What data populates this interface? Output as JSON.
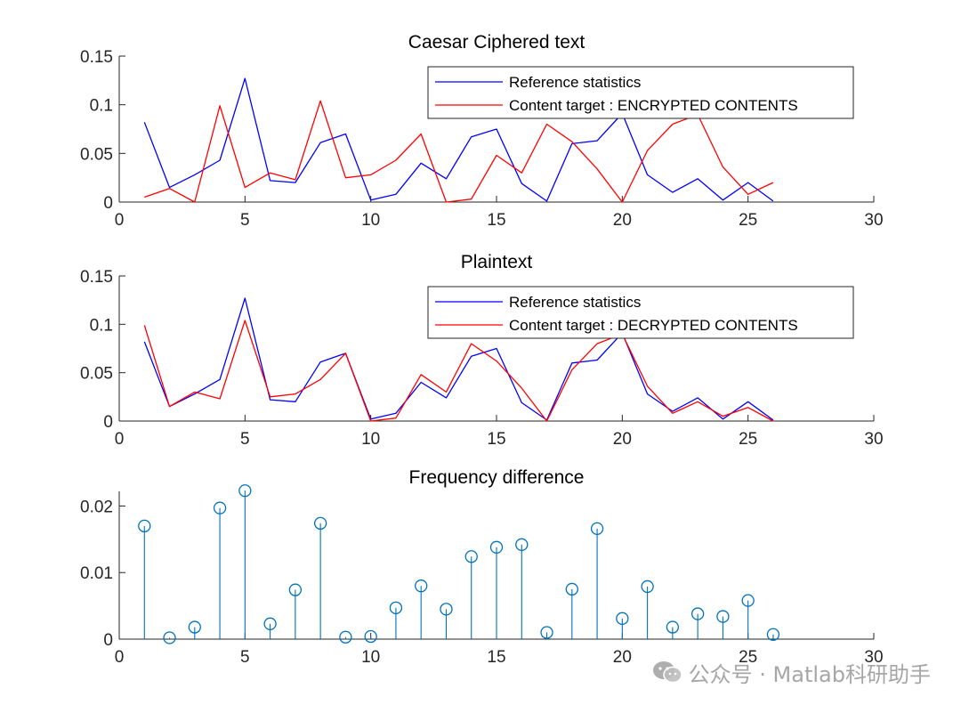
{
  "watermark": {
    "text": "公众号 · Matlab科研助手",
    "icon": "wechat-icon"
  },
  "colors": {
    "reference": "#0000ff",
    "target": "#ff0000",
    "stem": "#0072bd",
    "axis": "#262626"
  },
  "chart_data": [
    {
      "type": "line",
      "title": "Caesar Ciphered text",
      "xlim": [
        0,
        30
      ],
      "ylim": [
        0,
        0.15
      ],
      "xticks": [
        0,
        5,
        10,
        15,
        20,
        25,
        30
      ],
      "yticks": [
        0,
        0.05,
        0.1,
        0.15
      ],
      "ytick_labels": [
        "0",
        "0.05",
        "0.1",
        "0.15"
      ],
      "legend_position": "top-right",
      "x": [
        1,
        2,
        3,
        4,
        5,
        6,
        7,
        8,
        9,
        10,
        11,
        12,
        13,
        14,
        15,
        16,
        17,
        18,
        19,
        20,
        21,
        22,
        23,
        24,
        25,
        26
      ],
      "series": [
        {
          "name": "Reference statistics",
          "color": "#0000ff",
          "values": [
            0.082,
            0.015,
            0.028,
            0.043,
            0.127,
            0.022,
            0.02,
            0.061,
            0.07,
            0.002,
            0.008,
            0.04,
            0.024,
            0.067,
            0.075,
            0.019,
            0.001,
            0.06,
            0.063,
            0.091,
            0.028,
            0.01,
            0.024,
            0.002,
            0.02,
            0.001
          ]
        },
        {
          "name": "Content target : ENCRYPTED CONTENTS",
          "color": "#ff0000",
          "values": [
            0.005,
            0.014,
            0.0,
            0.099,
            0.015,
            0.03,
            0.023,
            0.104,
            0.025,
            0.028,
            0.043,
            0.07,
            0.0,
            0.003,
            0.048,
            0.03,
            0.08,
            0.062,
            0.034,
            0.0,
            0.053,
            0.08,
            0.09,
            0.036,
            0.008,
            0.02
          ]
        }
      ]
    },
    {
      "type": "line",
      "title": "Plaintext",
      "xlim": [
        0,
        30
      ],
      "ylim": [
        0,
        0.15
      ],
      "xticks": [
        0,
        5,
        10,
        15,
        20,
        25,
        30
      ],
      "yticks": [
        0,
        0.05,
        0.1,
        0.15
      ],
      "ytick_labels": [
        "0",
        "0.05",
        "0.1",
        "0.15"
      ],
      "legend_position": "top-right",
      "x": [
        1,
        2,
        3,
        4,
        5,
        6,
        7,
        8,
        9,
        10,
        11,
        12,
        13,
        14,
        15,
        16,
        17,
        18,
        19,
        20,
        21,
        22,
        23,
        24,
        25,
        26
      ],
      "series": [
        {
          "name": "Reference statistics",
          "color": "#0000ff",
          "values": [
            0.082,
            0.015,
            0.028,
            0.043,
            0.127,
            0.022,
            0.02,
            0.061,
            0.07,
            0.002,
            0.008,
            0.04,
            0.024,
            0.067,
            0.075,
            0.019,
            0.001,
            0.06,
            0.063,
            0.091,
            0.028,
            0.01,
            0.024,
            0.002,
            0.02,
            0.001
          ]
        },
        {
          "name": "Content target : DECRYPTED CONTENTS",
          "color": "#ff0000",
          "values": [
            0.099,
            0.015,
            0.03,
            0.023,
            0.104,
            0.025,
            0.028,
            0.043,
            0.07,
            0.0,
            0.003,
            0.048,
            0.03,
            0.08,
            0.062,
            0.034,
            0.0,
            0.053,
            0.08,
            0.09,
            0.036,
            0.008,
            0.02,
            0.005,
            0.014,
            0.0
          ]
        }
      ]
    },
    {
      "type": "stem",
      "title": "Frequency difference",
      "xlim": [
        0,
        30
      ],
      "ylim": [
        0,
        0.0222
      ],
      "xticks": [
        0,
        5,
        10,
        15,
        20,
        25,
        30
      ],
      "yticks": [
        0,
        0.01,
        0.02
      ],
      "ytick_labels": [
        "0",
        "0.01",
        "0.02"
      ],
      "x": [
        1,
        2,
        3,
        4,
        5,
        6,
        7,
        8,
        9,
        10,
        11,
        12,
        13,
        14,
        15,
        16,
        17,
        18,
        19,
        20,
        21,
        22,
        23,
        24,
        25,
        26
      ],
      "values": [
        0.017,
        0.0002,
        0.0018,
        0.0197,
        0.0223,
        0.0023,
        0.0074,
        0.0174,
        0.0003,
        0.0004,
        0.0047,
        0.008,
        0.0045,
        0.0124,
        0.0138,
        0.0142,
        0.001,
        0.0075,
        0.0166,
        0.0031,
        0.0079,
        0.0018,
        0.0038,
        0.0034,
        0.0058,
        0.0007
      ],
      "color": "#0072bd"
    }
  ]
}
